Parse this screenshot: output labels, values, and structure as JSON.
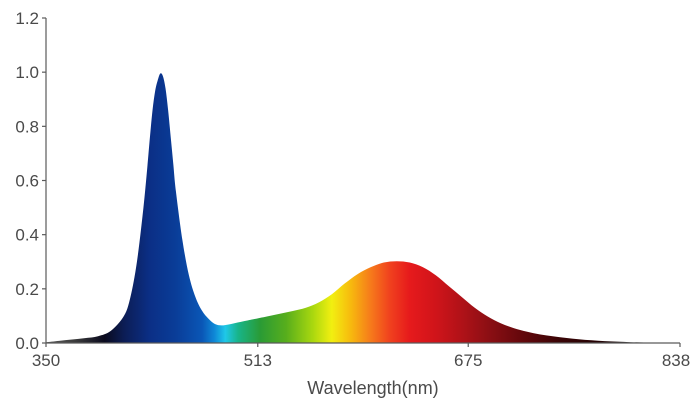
{
  "chart_data": {
    "type": "area",
    "title": "",
    "xlabel": "Wavelength(nm)",
    "ylabel": "",
    "xlim": [
      350,
      838
    ],
    "ylim": [
      0,
      1.2
    ],
    "x_ticks": [
      "350",
      "513",
      "675",
      "838"
    ],
    "y_ticks": [
      "0.0",
      "0.2",
      "0.4",
      "0.6",
      "0.8",
      "1.0",
      "1.2"
    ],
    "grid": false,
    "legend": "none",
    "fill": "visible-spectrum-gradient",
    "x": [
      350,
      360,
      370,
      380,
      390,
      400,
      410,
      415,
      420,
      425,
      428,
      430,
      432,
      434,
      436,
      438,
      440,
      442,
      444,
      446,
      448,
      450,
      455,
      460,
      465,
      470,
      475,
      480,
      485,
      490,
      495,
      500,
      505,
      510,
      520,
      530,
      540,
      550,
      560,
      570,
      580,
      590,
      600,
      610,
      620,
      630,
      640,
      650,
      660,
      670,
      680,
      690,
      700,
      710,
      720,
      730,
      740,
      750,
      760,
      770,
      780,
      790,
      800,
      810,
      820,
      830,
      838
    ],
    "values": [
      0.003,
      0.008,
      0.013,
      0.018,
      0.025,
      0.045,
      0.1,
      0.17,
      0.3,
      0.5,
      0.65,
      0.76,
      0.86,
      0.93,
      0.97,
      0.995,
      0.985,
      0.94,
      0.86,
      0.76,
      0.66,
      0.56,
      0.38,
      0.25,
      0.17,
      0.12,
      0.09,
      0.07,
      0.065,
      0.068,
      0.073,
      0.078,
      0.083,
      0.088,
      0.098,
      0.108,
      0.118,
      0.13,
      0.15,
      0.18,
      0.22,
      0.255,
      0.28,
      0.297,
      0.302,
      0.297,
      0.28,
      0.25,
      0.21,
      0.17,
      0.13,
      0.098,
      0.073,
      0.055,
      0.042,
      0.032,
      0.025,
      0.019,
      0.014,
      0.01,
      0.007,
      0.005,
      0.003,
      0.002,
      0.001,
      0.0,
      0.0
    ]
  }
}
